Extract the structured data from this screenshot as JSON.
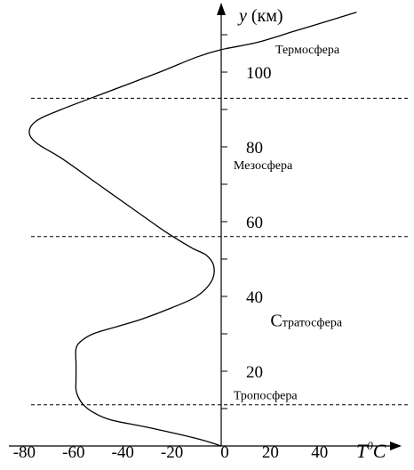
{
  "chart_data": {
    "type": "line",
    "title": "",
    "xlabel": {
      "var": "T",
      "sup": "0",
      "unit": "C"
    },
    "ylabel": {
      "var": "y",
      "unit": " (км)"
    },
    "xlim": [
      -86,
      58
    ],
    "ylim": [
      -3,
      118
    ],
    "x_ticks": [
      "-80",
      "-60",
      "-40",
      "-20",
      "0",
      "20",
      "40"
    ],
    "x_tick_values": [
      -80,
      -60,
      -40,
      -20,
      0,
      20,
      40
    ],
    "y_ticks": [
      "20",
      "40",
      "60",
      "80",
      "100"
    ],
    "y_tick_values": [
      20,
      40,
      60,
      80,
      100
    ],
    "boundaries": [
      11,
      56,
      93
    ],
    "layers": [
      {
        "label": "Тропосфера",
        "x": 5,
        "y": 12.5
      },
      {
        "first": "С",
        "rest": "тратосфера",
        "x": 20,
        "y": 32
      },
      {
        "label": "Мезосфера",
        "x": 5,
        "y": 74
      },
      {
        "label": "Термосфера",
        "x": 22,
        "y": 105
      }
    ],
    "series": [
      {
        "points": [
          [
            0,
            0
          ],
          [
            -10,
            2
          ],
          [
            -30,
            5
          ],
          [
            -45,
            7
          ],
          [
            -52,
            9
          ],
          [
            -56,
            11
          ],
          [
            -58,
            13
          ],
          [
            -59,
            15
          ],
          [
            -59,
            18
          ],
          [
            -59,
            22
          ],
          [
            -59,
            26
          ],
          [
            -57,
            28
          ],
          [
            -52,
            30
          ],
          [
            -42,
            32
          ],
          [
            -32,
            34
          ],
          [
            -20,
            37
          ],
          [
            -10,
            40
          ],
          [
            -4,
            44
          ],
          [
            -3,
            48
          ],
          [
            -6,
            51
          ],
          [
            -12,
            53
          ],
          [
            -22,
            57
          ],
          [
            -35,
            63
          ],
          [
            -50,
            70
          ],
          [
            -65,
            77
          ],
          [
            -75,
            81
          ],
          [
            -78,
            84
          ],
          [
            -75,
            87
          ],
          [
            -65,
            90
          ],
          [
            -45,
            95
          ],
          [
            -25,
            100
          ],
          [
            -10,
            104
          ],
          [
            0,
            106
          ],
          [
            15,
            108
          ],
          [
            30,
            111
          ],
          [
            45,
            114
          ],
          [
            55,
            116
          ]
        ]
      }
    ]
  }
}
